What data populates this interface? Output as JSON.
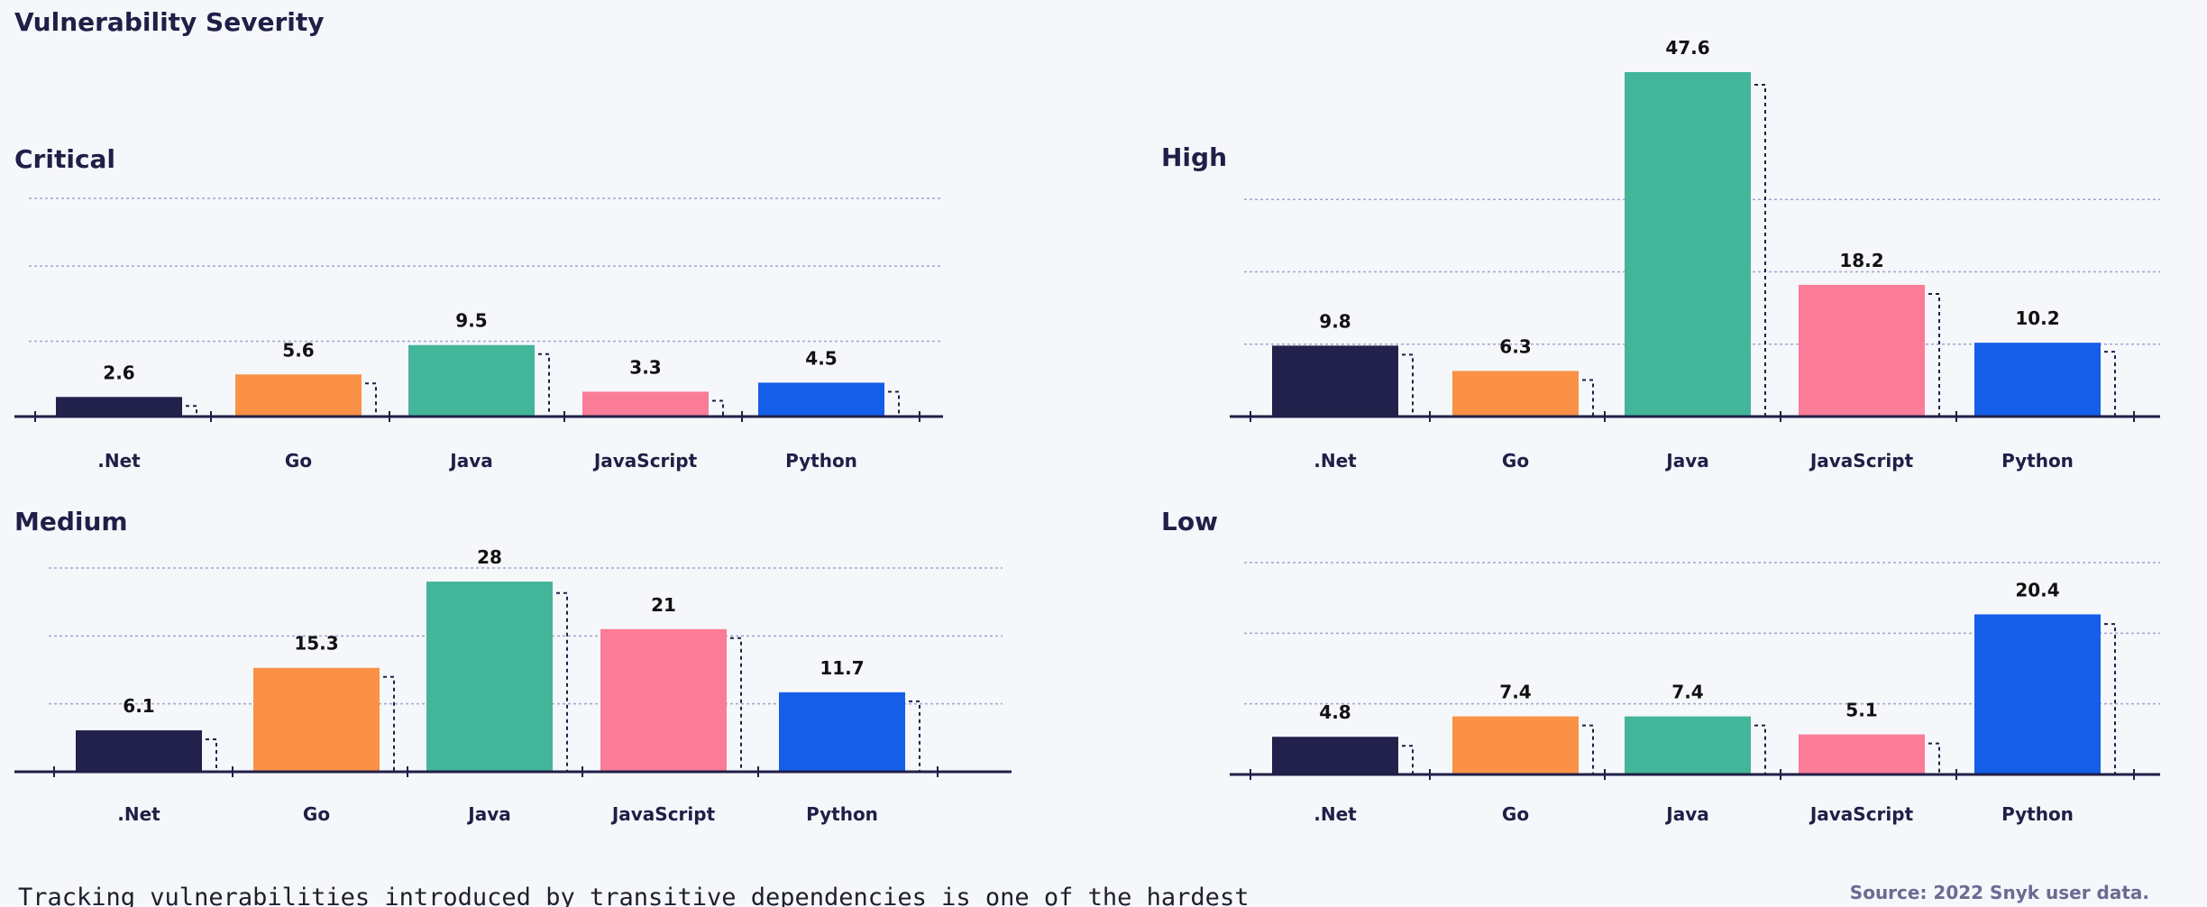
{
  "page": {
    "title": "Vulnerability Severity",
    "source": "Source: 2022 Snyk user data.",
    "body_text": "Tracking vulnerabilities introduced by transitive dependencies is one of the hardest"
  },
  "colors": {
    ".Net": "#22214b",
    "Go": "#fa9147",
    "Java": "#43b599",
    "JavaScript": "#fa7c98",
    "Python": "#155ee8",
    "gridline": "#a3a3cc",
    "axis": "#1f1f47",
    "dashed_outline": "#1f1f47"
  },
  "chart_data": [
    {
      "type": "bar",
      "title": "Critical",
      "categories": [
        ".Net",
        "Go",
        "Java",
        "JavaScript",
        "Python"
      ],
      "values": [
        2.6,
        5.6,
        9.5,
        3.3,
        4.5
      ],
      "xlabel": "",
      "ylabel": "",
      "ylim": [
        0,
        29
      ],
      "gridlines": [
        10,
        20,
        29
      ],
      "grid": true,
      "legend": "none"
    },
    {
      "type": "bar",
      "title": "High",
      "categories": [
        ".Net",
        "Go",
        "Java",
        "JavaScript",
        "Python"
      ],
      "values": [
        9.8,
        6.3,
        47.6,
        18.2,
        10.2
      ],
      "xlabel": "",
      "ylabel": "",
      "ylim": [
        0,
        47.6
      ],
      "gridlines": [
        10,
        20,
        30
      ],
      "grid": true,
      "legend": "none"
    },
    {
      "type": "bar",
      "title": "Medium",
      "categories": [
        ".Net",
        "Go",
        "Java",
        "JavaScript",
        "Python"
      ],
      "values": [
        6.1,
        15.3,
        28,
        21,
        11.7
      ],
      "xlabel": "",
      "ylabel": "",
      "ylim": [
        0,
        30
      ],
      "gridlines": [
        10,
        20,
        30
      ],
      "grid": true,
      "legend": "none"
    },
    {
      "type": "bar",
      "title": "Low",
      "categories": [
        ".Net",
        "Go",
        "Java",
        "JavaScript",
        "Python"
      ],
      "values": [
        4.8,
        7.4,
        7.4,
        5.1,
        20.4
      ],
      "xlabel": "",
      "ylabel": "",
      "ylim": [
        0,
        27
      ],
      "gridlines": [
        9,
        18,
        27
      ],
      "grid": true,
      "legend": "none"
    }
  ]
}
